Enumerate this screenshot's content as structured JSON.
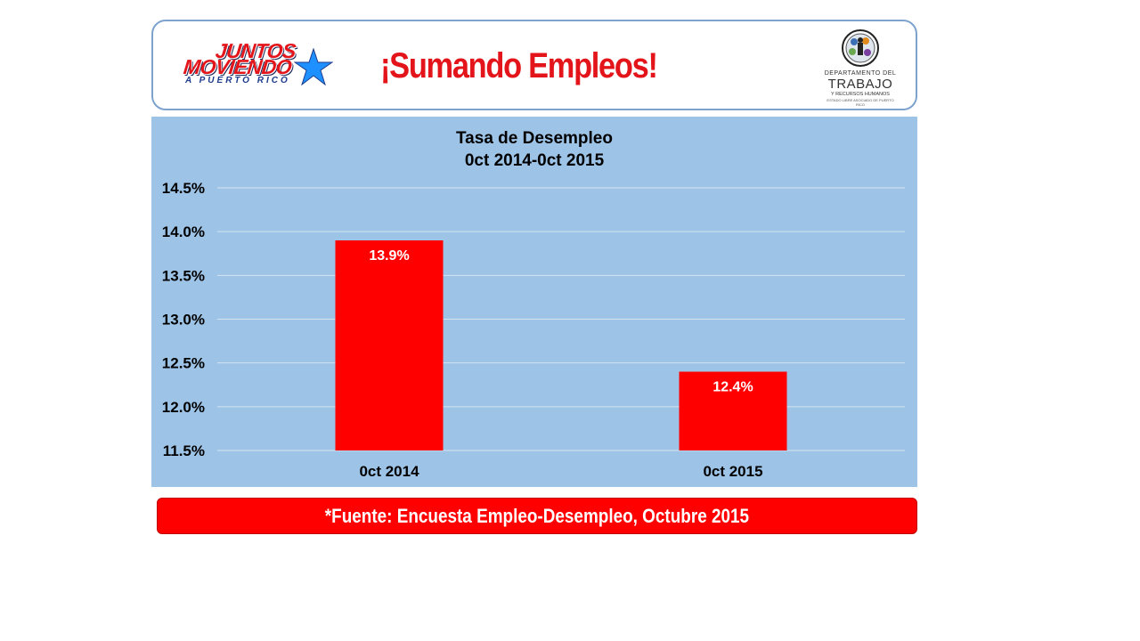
{
  "header": {
    "logo_left_line1": "JUNTOS",
    "logo_left_line2": "MOVIENDO",
    "logo_left_line3": "A PUERTO RICO",
    "title": "¡Sumando Empleos!",
    "logo_right_line1": "DEPARTAMENTO DEL",
    "logo_right_line2": "TRABAJO",
    "logo_right_line3": "Y RECURSOS HUMANOS",
    "logo_right_line4": "ESTADO LIBRE ASOCIADO DE PUERTO RICO"
  },
  "colors": {
    "accent_red": "#ff0000",
    "chart_background": "#9dc3e6",
    "header_border": "#7da3cd",
    "logo_blue": "#1e3c8c"
  },
  "chart_data": {
    "type": "bar",
    "title_line1": "Tasa de Desempleo",
    "title_line2": "0ct 2014-0ct 2015",
    "categories": [
      "0ct 2014",
      "0ct 2015"
    ],
    "values": [
      13.9,
      12.4
    ],
    "data_labels": [
      "13.9%",
      "12.4%"
    ],
    "ylim": [
      11.5,
      14.5
    ],
    "yticks": [
      11.5,
      12.0,
      12.5,
      13.0,
      13.5,
      14.0,
      14.5
    ],
    "ytick_labels": [
      "11.5%",
      "12.0%",
      "12.5%",
      "13.0%",
      "13.5%",
      "14.0%",
      "14.5%"
    ],
    "grid": true,
    "bar_color": "#ff0000"
  },
  "footer": {
    "source": "*Fuente: Encuesta Empleo-Desempleo,  Octubre 2015"
  }
}
